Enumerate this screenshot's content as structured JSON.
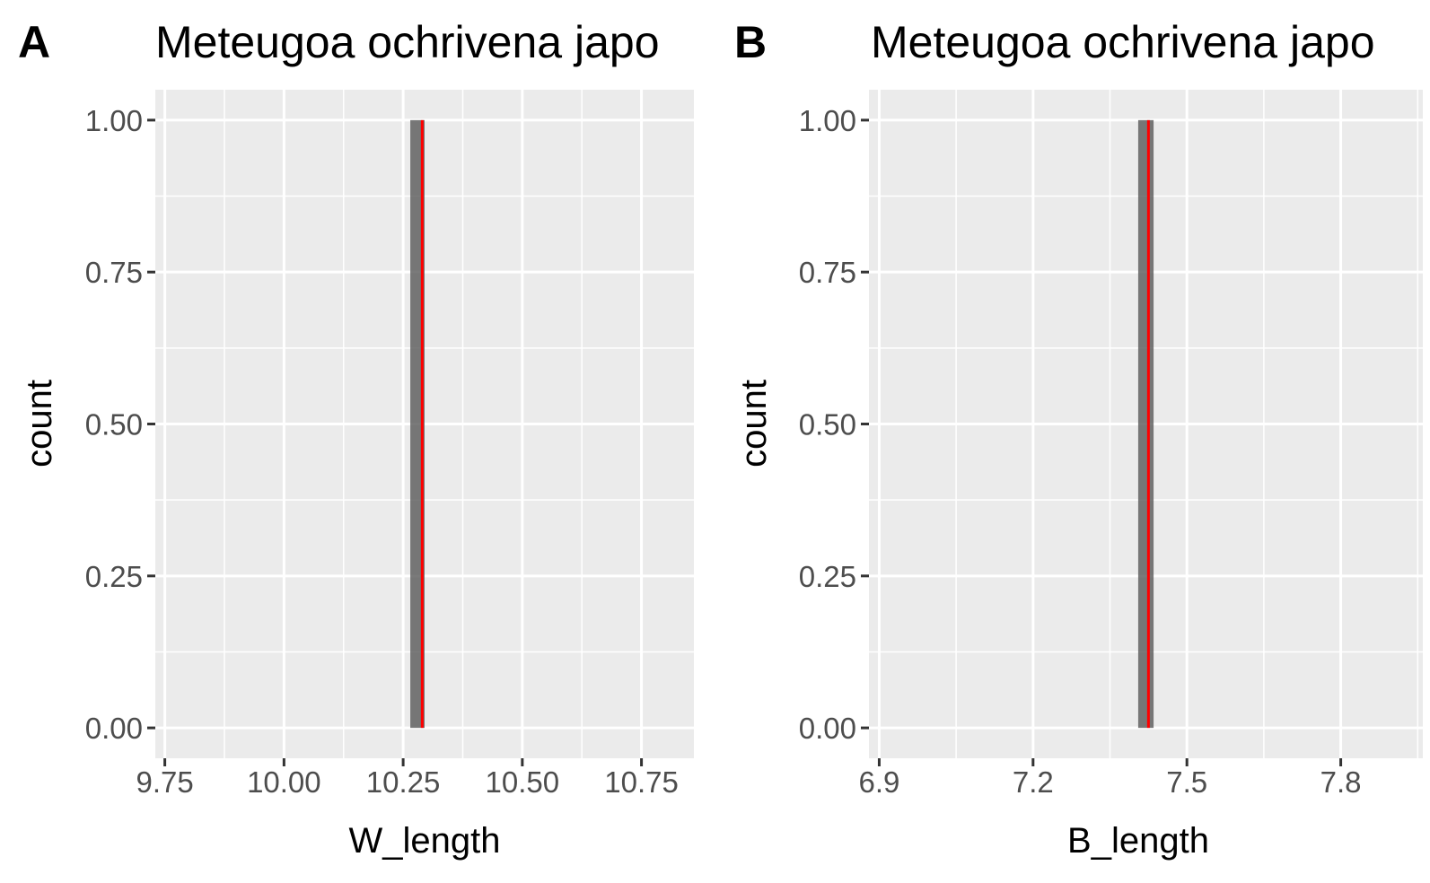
{
  "chart_data": [
    {
      "type": "bar",
      "panel_label": "A",
      "title": "Meteugoa ochrivena japo",
      "xlabel": "W_length",
      "ylabel": "count",
      "xlim": [
        9.73,
        10.86
      ],
      "ylim": [
        -0.05,
        1.05
      ],
      "x_ticks": [
        9.75,
        10.0,
        10.25,
        10.5,
        10.75
      ],
      "x_tick_labels": [
        "9.75",
        "10.00",
        "10.25",
        "10.50",
        "10.75"
      ],
      "y_ticks": [
        0,
        0.25,
        0.5,
        0.75,
        1.0
      ],
      "y_tick_labels": [
        "0.00",
        "0.25",
        "0.50",
        "0.75",
        "1.00"
      ],
      "grid": true,
      "bars": [
        {
          "x_start": 10.265,
          "x_end": 10.295,
          "count": 1
        }
      ],
      "reference_line": {
        "x": 10.29,
        "color": "#ff0000"
      },
      "colors": {
        "bar": "#595959",
        "reference_line": "#ff0000",
        "panel_background": "#ebebeb"
      }
    },
    {
      "type": "bar",
      "panel_label": "B",
      "title": "Meteugoa ochrivena japo",
      "xlabel": "B_length",
      "ylabel": "count",
      "xlim": [
        6.88,
        7.96
      ],
      "ylim": [
        -0.05,
        1.05
      ],
      "x_ticks": [
        6.9,
        7.2,
        7.5,
        7.8
      ],
      "x_tick_labels": [
        "6.9",
        "7.2",
        "7.5",
        "7.8"
      ],
      "y_ticks": [
        0,
        0.25,
        0.5,
        0.75,
        1.0
      ],
      "y_tick_labels": [
        "0.00",
        "0.25",
        "0.50",
        "0.75",
        "1.00"
      ],
      "grid": true,
      "bars": [
        {
          "x_start": 7.405,
          "x_end": 7.435,
          "count": 1
        }
      ],
      "reference_line": {
        "x": 7.425,
        "color": "#ff0000"
      },
      "colors": {
        "bar": "#595959",
        "reference_line": "#ff0000",
        "panel_background": "#ebebeb"
      }
    }
  ]
}
